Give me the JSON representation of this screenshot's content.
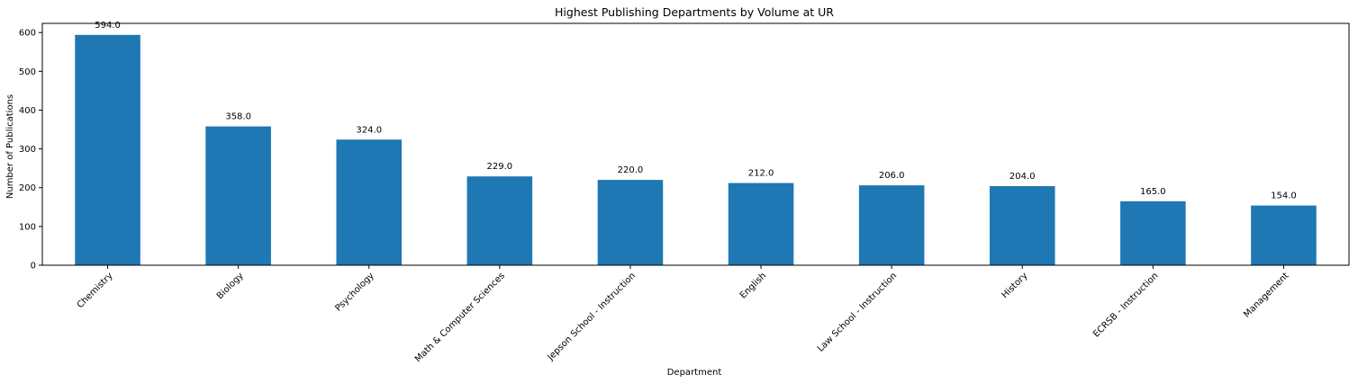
{
  "chart_data": {
    "type": "bar",
    "title": "Highest Publishing Departments by Volume at UR",
    "xlabel": "Department",
    "ylabel": "Number of Publications",
    "categories": [
      "Chemistry",
      "Biology",
      "Psychology",
      "Math & Computer Sciences",
      "Jepson School - Instruction",
      "English",
      "Law School - Instruction",
      "History",
      "ECRSB - Instruction",
      "Management"
    ],
    "values": [
      594,
      358,
      324,
      229,
      220,
      212,
      206,
      204,
      165,
      154
    ],
    "data_labels": [
      "594.0",
      "358.0",
      "324.0",
      "229.0",
      "220.0",
      "212.0",
      "206.0",
      "204.0",
      "165.0",
      "154.0"
    ],
    "yticks": [
      0,
      100,
      200,
      300,
      400,
      500,
      600
    ],
    "ylim": [
      0,
      623.7
    ],
    "grid": false,
    "legend": "none",
    "bar_color": "#1f77b4"
  }
}
